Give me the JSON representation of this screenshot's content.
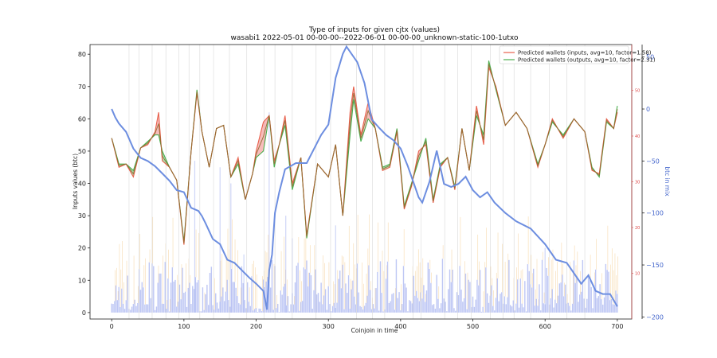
{
  "chart_data": {
    "type": "line",
    "title": "Type of inputs for given cjtx (values)",
    "subtitle": "wasabi1 2022-05-01 00-00-00--2022-06-01 00-00-00_unknown-static-100-1utxo",
    "xlabel": "Coinjoin in time",
    "ylabel": "Inputs values (btc)",
    "ylabel_right": "btc in mix",
    "xlim": [
      -30,
      720
    ],
    "ylim": [
      -2,
      83
    ],
    "ylim_right_inner": [
      0,
      60
    ],
    "ylim_right_outer": [
      -202,
      62
    ],
    "grid": "vertical lines",
    "legend_position": "top-right",
    "x_ticks": [
      0,
      100,
      200,
      300,
      400,
      500,
      600,
      700
    ],
    "y_ticks": [
      0,
      10,
      20,
      30,
      40,
      50,
      60,
      70,
      80
    ],
    "right_inner_ticks": [
      10,
      20,
      30,
      40,
      50
    ],
    "right_outer_ticks": [
      50,
      0,
      -50,
      -100,
      -150,
      -200
    ],
    "x_tick_labels": [
      "0",
      "100",
      "200",
      "300",
      "400",
      "500",
      "600",
      "700"
    ],
    "y_tick_labels": [
      "0",
      "10",
      "20",
      "30",
      "40",
      "50",
      "60",
      "70",
      "80"
    ],
    "right_inner_tick_labels": [
      "10",
      "20",
      "30",
      "40",
      "50"
    ],
    "right_outer_tick_labels": [
      "50",
      "0",
      "−50",
      "−100",
      "−150",
      "−200"
    ],
    "vertical_gridlines_x": [
      24,
      38,
      56,
      75,
      93,
      107,
      122,
      141,
      163,
      187,
      211,
      226,
      250,
      283,
      303,
      339,
      361,
      378,
      417,
      428,
      461,
      479,
      498,
      524,
      542,
      557,
      580,
      606,
      630,
      655
    ],
    "series": [
      {
        "name": "Predicted wallets (inputs, avg=10, factor=1.58)",
        "color": "#e8604c",
        "x": [
          0,
          10,
          20,
          30,
          40,
          50,
          60,
          65,
          70,
          80,
          90,
          100,
          110,
          118,
          125,
          135,
          145,
          155,
          165,
          175,
          185,
          195,
          200,
          210,
          218,
          225,
          232,
          240,
          250,
          262,
          270,
          285,
          300,
          310,
          320,
          330,
          335,
          345,
          355,
          365,
          375,
          385,
          395,
          405,
          415,
          425,
          435,
          445,
          455,
          465,
          475,
          485,
          495,
          505,
          515,
          522,
          532,
          545,
          560,
          575,
          590,
          600,
          610,
          625,
          640,
          655,
          665,
          675,
          685,
          695,
          700
        ],
        "y": [
          54,
          45,
          46,
          42,
          51,
          52,
          56,
          62,
          47,
          45,
          41,
          21,
          50,
          68,
          56,
          45,
          57,
          58,
          42,
          48,
          35,
          43,
          50,
          59,
          61,
          47,
          52,
          61,
          40,
          48,
          24,
          46,
          42,
          52,
          30,
          62,
          70,
          55,
          65,
          57,
          44,
          45,
          56,
          32,
          39,
          50,
          52,
          34,
          45,
          48,
          38,
          57,
          44,
          64,
          52,
          76,
          70,
          58,
          62,
          57,
          45,
          52,
          60,
          54,
          60,
          56,
          44,
          43,
          60,
          57,
          62
        ]
      },
      {
        "name": "Predicted wallets (outputs, avg=10, factor=2.31)",
        "color": "#4caf50",
        "x": [
          0,
          10,
          20,
          30,
          40,
          50,
          60,
          65,
          70,
          80,
          90,
          100,
          110,
          118,
          125,
          135,
          145,
          155,
          165,
          175,
          185,
          195,
          200,
          210,
          218,
          225,
          232,
          240,
          250,
          262,
          270,
          285,
          300,
          310,
          320,
          330,
          335,
          345,
          355,
          365,
          375,
          385,
          395,
          405,
          415,
          425,
          435,
          445,
          455,
          465,
          475,
          485,
          495,
          505,
          515,
          522,
          532,
          545,
          560,
          575,
          590,
          600,
          610,
          625,
          640,
          655,
          665,
          675,
          685,
          695,
          700
        ],
        "y": [
          54,
          46,
          46,
          44,
          51,
          53,
          55,
          55,
          50,
          45,
          41,
          22,
          50,
          69,
          56,
          45,
          57,
          58,
          42,
          46,
          35,
          43,
          48,
          50,
          61,
          45,
          52,
          58,
          38,
          48,
          23,
          46,
          42,
          52,
          30,
          55,
          66,
          53,
          60,
          57,
          45,
          46,
          57,
          33,
          40,
          47,
          54,
          35,
          46,
          48,
          39,
          57,
          44,
          61,
          55,
          78,
          69,
          58,
          62,
          57,
          46,
          52,
          59,
          55,
          60,
          56,
          45,
          42,
          59,
          57,
          64
        ]
      },
      {
        "name": "btc in mix",
        "color": "#6d8ee0",
        "x": [
          0,
          5,
          10,
          20,
          30,
          40,
          50,
          60,
          70,
          80,
          90,
          100,
          110,
          120,
          125,
          130,
          140,
          150,
          160,
          170,
          180,
          190,
          200,
          210,
          215,
          218,
          222,
          226,
          232,
          240,
          255,
          270,
          290,
          300,
          310,
          320,
          325,
          330,
          340,
          350,
          360,
          370,
          380,
          390,
          400,
          410,
          420,
          425,
          430,
          440,
          450,
          460,
          470,
          480,
          490,
          500,
          510,
          520,
          530,
          545,
          560,
          580,
          600,
          615,
          630,
          640,
          650,
          660,
          670,
          680,
          690,
          700
        ],
        "y": [
          0,
          -8,
          -14,
          -22,
          -38,
          -47,
          -50,
          -55,
          -62,
          -69,
          -78,
          -80,
          -95,
          -98,
          -103,
          -110,
          -125,
          -130,
          -145,
          -148,
          -155,
          -162,
          -168,
          -175,
          -193,
          -155,
          -140,
          -100,
          -80,
          -58,
          -52,
          -52,
          -25,
          -15,
          30,
          53,
          60,
          55,
          45,
          25,
          -10,
          -18,
          -25,
          -30,
          -38,
          -55,
          -75,
          -85,
          -90,
          -70,
          -40,
          -72,
          -75,
          -72,
          -65,
          -78,
          -85,
          -80,
          -90,
          -100,
          -108,
          -115,
          -130,
          -145,
          -148,
          -158,
          -168,
          -160,
          -175,
          -178,
          -178,
          -190
        ]
      }
    ]
  }
}
